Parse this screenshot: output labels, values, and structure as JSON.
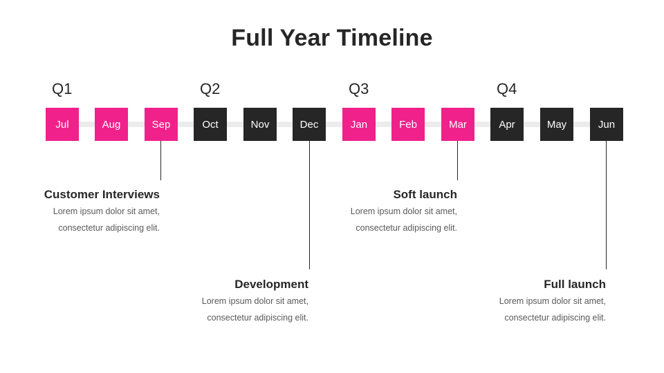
{
  "title": "Full Year Timeline",
  "quarters": [
    "Q1",
    "Q2",
    "Q3",
    "Q4"
  ],
  "months": [
    {
      "label": "Jul",
      "color": "#f0218a"
    },
    {
      "label": "Aug",
      "color": "#f0218a"
    },
    {
      "label": "Sep",
      "color": "#f0218a"
    },
    {
      "label": "Oct",
      "color": "#262626"
    },
    {
      "label": "Nov",
      "color": "#262626"
    },
    {
      "label": "Dec",
      "color": "#262626"
    },
    {
      "label": "Jan",
      "color": "#f0218a"
    },
    {
      "label": "Feb",
      "color": "#f0218a"
    },
    {
      "label": "Mar",
      "color": "#f0218a"
    },
    {
      "label": "Apr",
      "color": "#262626"
    },
    {
      "label": "May",
      "color": "#262626"
    },
    {
      "label": "Jun",
      "color": "#262626"
    }
  ],
  "milestones": [
    {
      "title": "Customer Interviews",
      "line1": "Lorem ipsum dolor sit amet,",
      "line2": "consectetur adipiscing elit."
    },
    {
      "title": "Development",
      "line1": "Lorem ipsum dolor sit amet,",
      "line2": "consectetur adipiscing elit."
    },
    {
      "title": "Soft launch",
      "line1": "Lorem ipsum dolor sit amet,",
      "line2": "consectetur adipiscing elit."
    },
    {
      "title": "Full launch",
      "line1": "Lorem ipsum dolor sit amet,",
      "line2": "consectetur adipiscing elit."
    }
  ]
}
